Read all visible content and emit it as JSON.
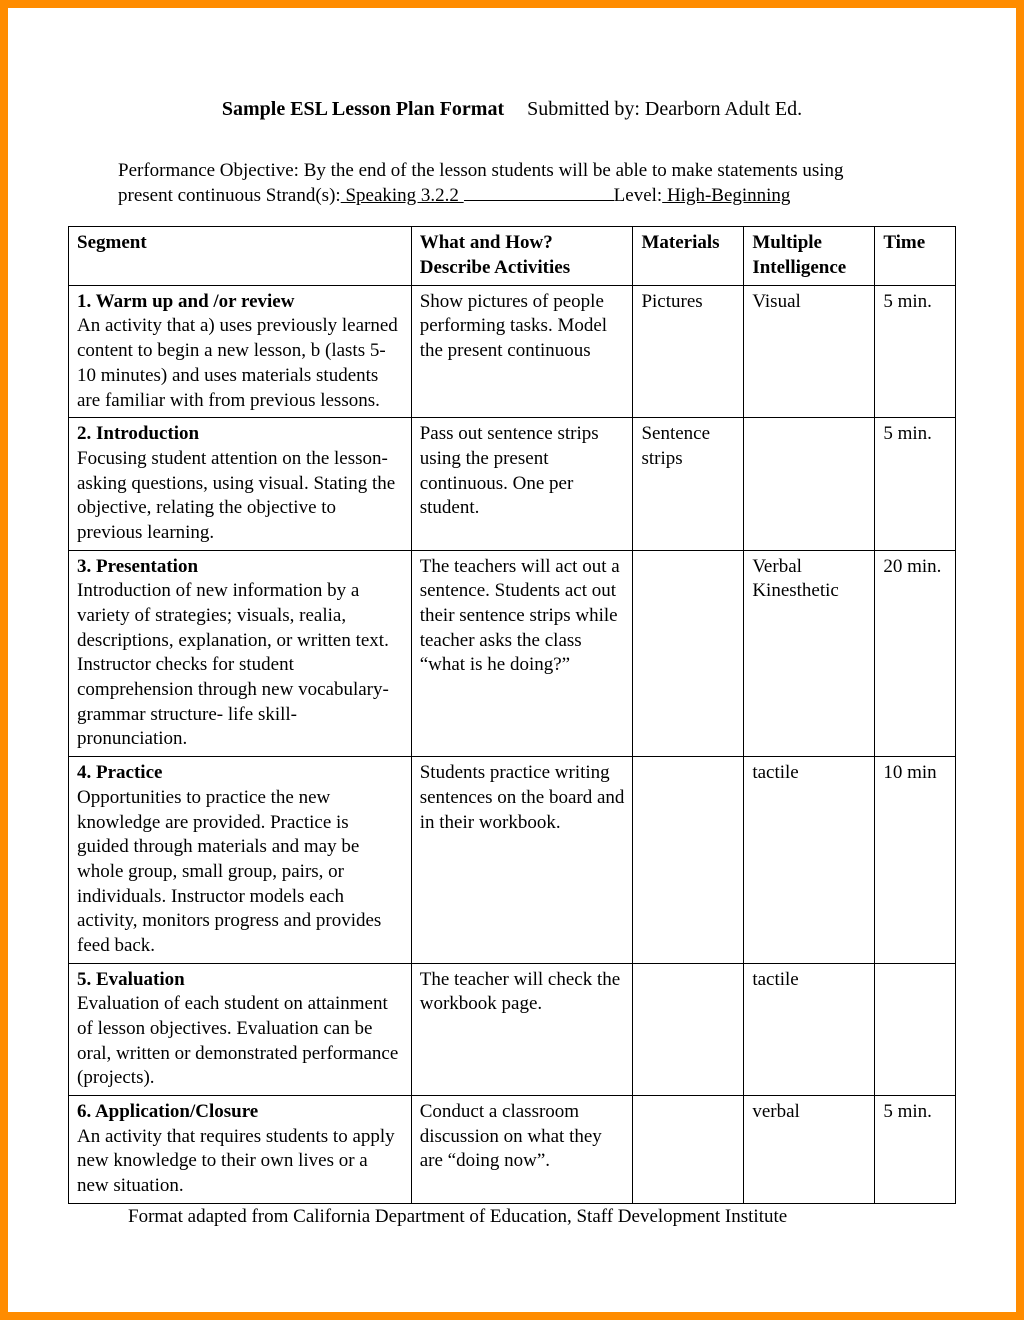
{
  "header": {
    "title_bold": "Sample ESL Lesson Plan Format",
    "submitted": "Submitted by: Dearborn Adult Ed."
  },
  "objective": {
    "line1": "Performance Objective: By the end of the lesson students will be able to make statements using",
    "line2_prefix": "present continuous Strand(s):",
    "strand_value": " Speaking 3.2.2 ",
    "level_label": "Level:",
    "level_value": " High-Beginning"
  },
  "table": {
    "headers": {
      "segment": "Segment",
      "what_line1": "What and How?",
      "what_line2": "Describe Activities",
      "materials": "Materials",
      "intelligence_line1": "Multiple",
      "intelligence_line2": "Intelligence",
      "time": "Time"
    },
    "rows": [
      {
        "seg_title": "1. Warm up and /or review",
        "seg_desc": "An activity that a) uses previously learned content to begin a new lesson, b (lasts 5-10 minutes) and uses materials students are familiar with from previous lessons.",
        "what": "Show pictures of people performing tasks. Model the present continuous",
        "materials": "Pictures",
        "intel": "Visual",
        "time": "5 min."
      },
      {
        "seg_title": "2. Introduction",
        "seg_desc": "Focusing student attention on the lesson-asking questions, using visual.  Stating the objective, relating the objective to previous learning.",
        "what": "Pass out sentence strips using the present continuous.  One per student.",
        "materials": "Sentence strips",
        "intel": "",
        "time": "5 min."
      },
      {
        "seg_title": "3. Presentation",
        "seg_desc": "Introduction of new information by a variety of strategies; visuals, realia, descriptions, explanation, or written text. Instructor checks for student comprehension through new vocabulary- grammar structure- life skill-pronunciation.",
        "what": "The teachers will act out a sentence.  Students act out their sentence strips while teacher asks the class “what is he doing?”",
        "materials": "",
        "intel": "Verbal Kinesthetic",
        "time": "20 min."
      },
      {
        "seg_title": "4. Practice",
        "seg_desc": "Opportunities to practice the new knowledge are provided.  Practice is guided through materials and may be whole group, small group, pairs, or individuals.  Instructor models each activity, monitors progress and provides feed back.",
        "what": "Students practice writing sentences on the board and in their workbook.",
        "materials": "",
        "intel": "tactile",
        "time": "10 min"
      },
      {
        "seg_title": "5. Evaluation",
        "seg_desc": "Evaluation of each student on attainment of lesson objectives. Evaluation can be oral, written or demonstrated performance (projects).",
        "what": "The teacher will check the workbook page.",
        "materials": "",
        "intel": "tactile",
        "time": ""
      },
      {
        "seg_title": "6. Application/Closure",
        "seg_desc": "An activity that requires students to apply new knowledge to their own lives or a new situation.",
        "what": "Conduct a classroom discussion on what they are “doing now”.",
        "materials": "",
        "intel": "verbal",
        "time": "5 min."
      }
    ]
  },
  "footer": "Format adapted from California Department of Education, Staff Development Institute",
  "style": {
    "border_color": "#ff8c00",
    "background_color": "#ffffff",
    "font_family": "Times New Roman",
    "base_font_size": 19,
    "title_font_size": 20,
    "table_border_color": "#000000"
  }
}
